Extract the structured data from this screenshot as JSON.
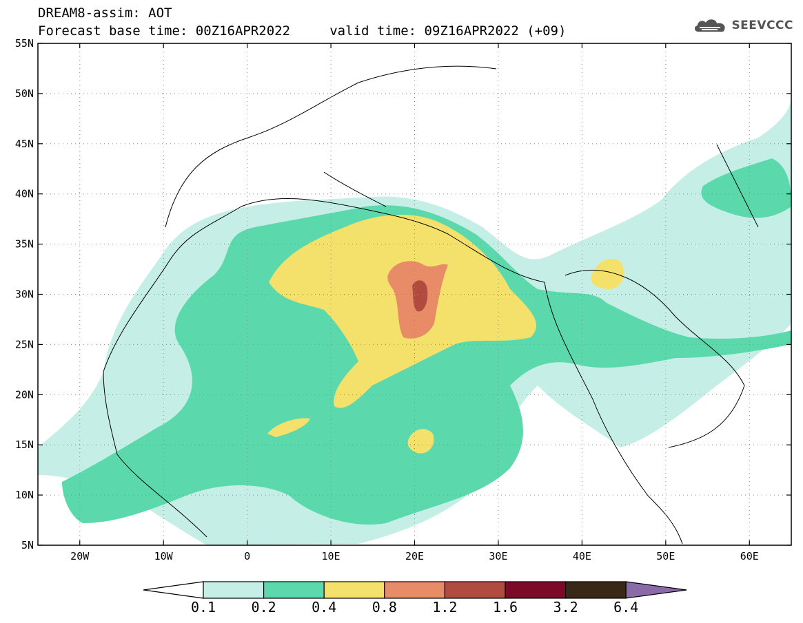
{
  "header": {
    "line1": "DREAM8-assim: AOT",
    "line2": "Forecast base time: 00Z16APR2022     valid time: 09Z16APR2022 (+09)"
  },
  "logo": {
    "text": "SEEVCCC",
    "icon": "cloud-icon",
    "color": "#555555"
  },
  "axes": {
    "lat_labels": [
      "55N",
      "50N",
      "45N",
      "40N",
      "35N",
      "30N",
      "25N",
      "20N",
      "15N",
      "10N",
      "5N"
    ],
    "lat_values": [
      55,
      50,
      45,
      40,
      35,
      30,
      25,
      20,
      15,
      10,
      5
    ],
    "lon_labels": [
      "20W",
      "10W",
      "0",
      "10E",
      "20E",
      "30E",
      "40E",
      "50E",
      "60E"
    ],
    "lon_values": [
      -20,
      -10,
      0,
      10,
      20,
      30,
      40,
      50,
      60
    ],
    "lon_range": [
      -25,
      65
    ],
    "lat_range": [
      5,
      55
    ],
    "grid": "dotted"
  },
  "colorbar": {
    "labels": [
      "0.1",
      "0.2",
      "0.4",
      "0.8",
      "1.2",
      "1.6",
      "3.2",
      "6.4"
    ],
    "colors": [
      "#c5efe6",
      "#5cd9ac",
      "#f4e16b",
      "#e88c67",
      "#b14b40",
      "#7a0a27",
      "#3a2816",
      "#8b6aa8"
    ],
    "under_color": "#ffffff"
  },
  "field": {
    "variable": "AOT",
    "levels": [
      0.1,
      0.2,
      0.4,
      0.8,
      1.2,
      1.6
    ]
  }
}
